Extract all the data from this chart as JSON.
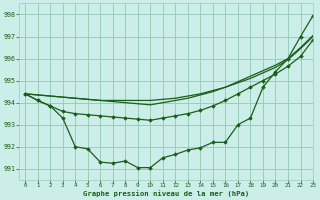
{
  "title": "Graphe pression niveau de la mer (hPa)",
  "bg_color": "#cceee8",
  "grid_color": "#99ccbb",
  "line_color": "#1a5e1a",
  "marker_color": "#1a5e1a",
  "xlim": [
    -0.5,
    23
  ],
  "ylim": [
    990.5,
    998.5
  ],
  "yticks": [
    991,
    992,
    993,
    994,
    995,
    996,
    997,
    998
  ],
  "xticks": [
    0,
    1,
    2,
    3,
    4,
    5,
    6,
    7,
    8,
    9,
    10,
    11,
    12,
    13,
    14,
    15,
    16,
    17,
    18,
    19,
    20,
    21,
    22,
    23
  ],
  "series1": [
    994.4,
    994.1,
    993.85,
    993.3,
    992.0,
    991.9,
    991.3,
    991.25,
    991.35,
    991.05,
    991.05,
    991.5,
    991.65,
    991.85,
    991.95,
    992.2,
    992.2,
    993.0,
    993.3,
    994.7,
    995.4,
    996.0,
    997.0,
    997.95
  ],
  "series2": [
    994.4,
    994.1,
    993.85,
    993.6,
    993.5,
    993.45,
    993.4,
    993.35,
    993.3,
    993.25,
    993.2,
    993.3,
    993.4,
    993.5,
    993.65,
    993.85,
    994.1,
    994.4,
    994.7,
    995.0,
    995.3,
    995.65,
    996.1,
    996.85
  ],
  "series3": [
    994.4,
    994.35,
    994.3,
    994.25,
    994.2,
    994.15,
    994.1,
    994.1,
    994.1,
    994.1,
    994.1,
    994.15,
    994.2,
    994.3,
    994.4,
    994.55,
    994.7,
    994.9,
    995.1,
    995.35,
    995.6,
    995.95,
    996.45,
    997.0
  ],
  "series4": [
    994.4,
    994.35,
    994.3,
    994.25,
    994.2,
    994.15,
    994.1,
    994.05,
    994.0,
    993.95,
    993.9,
    994.0,
    994.1,
    994.2,
    994.35,
    994.5,
    994.7,
    994.95,
    995.2,
    995.45,
    995.7,
    996.0,
    996.5,
    997.05
  ]
}
